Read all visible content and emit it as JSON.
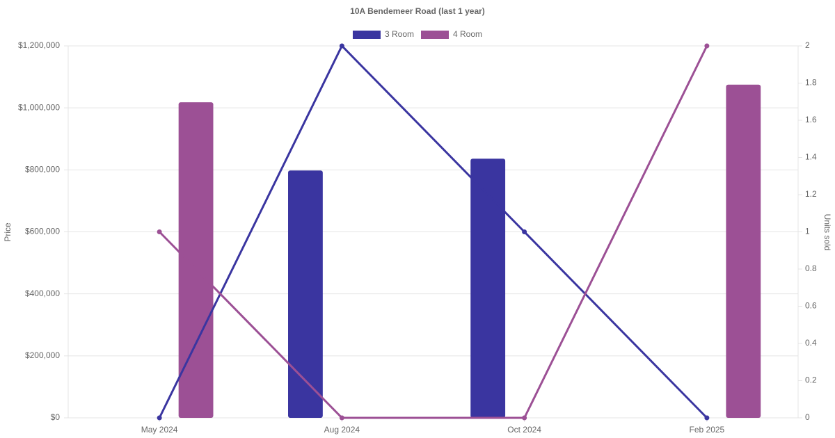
{
  "chart_data": {
    "type": "bar",
    "title": "10A Bendemeer Road (last 1 year)",
    "categories": [
      "May 2024",
      "Aug 2024",
      "Oct 2024",
      "Feb 2025"
    ],
    "series": [
      {
        "name": "3 Room",
        "type": "bar",
        "color": "#3a35a0",
        "values": [
          null,
          798000,
          836000,
          null
        ]
      },
      {
        "name": "4 Room",
        "type": "bar",
        "color": "#9c5095",
        "values": [
          1018000,
          null,
          null,
          1075000
        ]
      },
      {
        "type": "line",
        "axis": "y2",
        "color": "#3a35a0",
        "values": [
          0,
          2,
          1,
          0
        ]
      },
      {
        "type": "line",
        "axis": "y2",
        "color": "#9c5095",
        "values": [
          1,
          0,
          0,
          2
        ]
      }
    ],
    "ylabel": "Price",
    "y2label": "Units sold",
    "ylim": [
      0,
      1200000
    ],
    "yticks": [
      {
        "value": 0,
        "label": "$0"
      },
      {
        "value": 200000,
        "label": "$200,000"
      },
      {
        "value": 400000,
        "label": "$400,000"
      },
      {
        "value": 600000,
        "label": "$600,000"
      },
      {
        "value": 800000,
        "label": "$800,000"
      },
      {
        "value": 1000000,
        "label": "$1,000,000"
      },
      {
        "value": 1200000,
        "label": "$1,200,000"
      }
    ],
    "y2lim": [
      0,
      2
    ],
    "y2ticks": [
      0,
      0.2,
      0.4,
      0.6,
      0.8,
      1,
      1.2,
      1.4,
      1.6,
      1.8,
      2
    ],
    "grid": true,
    "legend": "top"
  }
}
